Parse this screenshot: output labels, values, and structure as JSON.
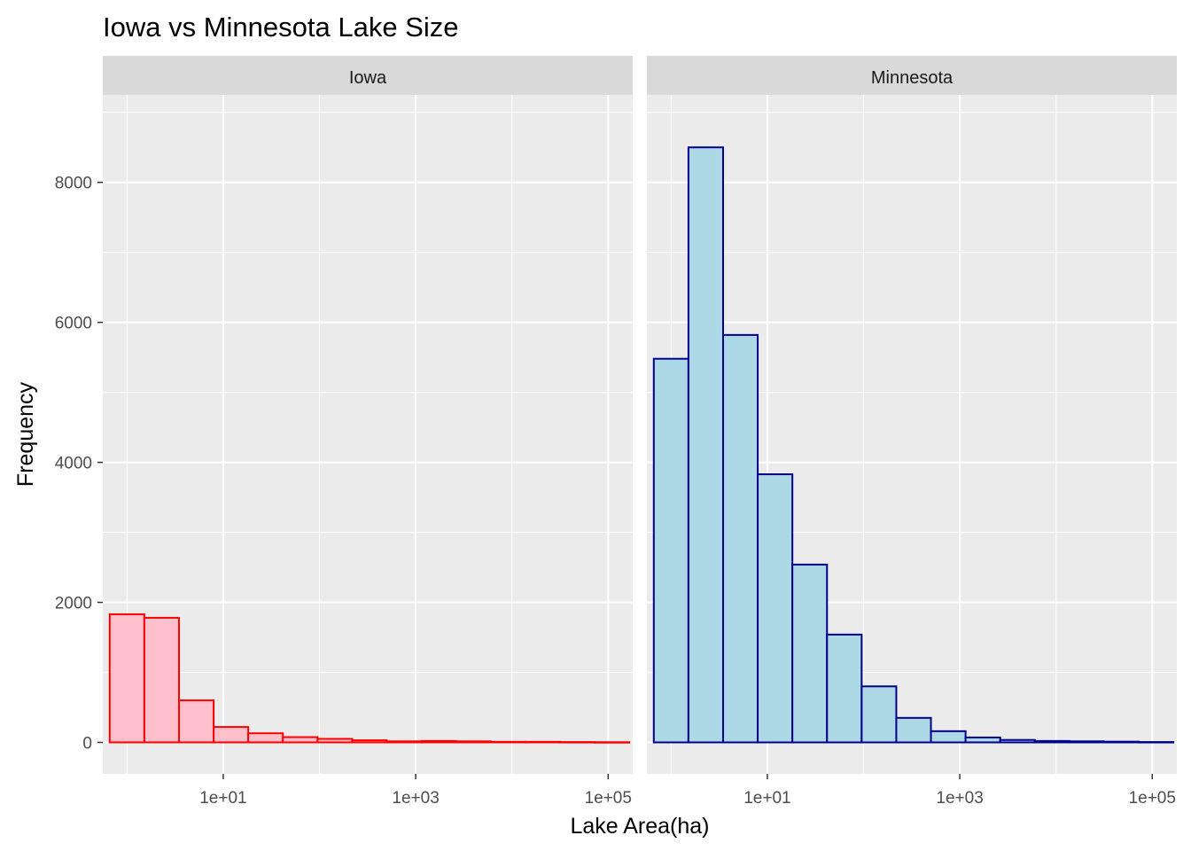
{
  "title": "Iowa vs Minnesota Lake Size",
  "chart_data": {
    "type": "bar",
    "subtype": "faceted-histogram",
    "title": "Iowa vs Minnesota Lake Size",
    "xlabel": "Lake Area(ha)",
    "ylabel": "Frequency",
    "x_scale": "log10",
    "xlim": [
      0.56,
      180000
    ],
    "ylim": [
      -450,
      9250
    ],
    "x_ticks": [
      10,
      1000,
      100000
    ],
    "x_tick_labels": [
      "1e+01",
      "1e+03",
      "1e+05"
    ],
    "y_ticks": [
      0,
      2000,
      4000,
      6000,
      8000
    ],
    "y_tick_labels": [
      "0",
      "2000",
      "4000",
      "6000",
      "8000"
    ],
    "grid": true,
    "bin_edges_log10": [
      -0.18,
      0.18,
      0.54,
      0.9,
      1.26,
      1.62,
      1.98,
      2.34,
      2.7,
      3.06,
      3.42,
      3.78,
      4.14,
      4.5,
      4.86,
      5.22
    ],
    "facets": [
      {
        "name": "Iowa",
        "fill": "#ffc0cb",
        "outline": "#ff0000",
        "counts": [
          1830,
          1780,
          600,
          220,
          130,
          75,
          50,
          30,
          15,
          20,
          15,
          8,
          8,
          5,
          3
        ]
      },
      {
        "name": "Minnesota",
        "fill": "#add8e6",
        "outline": "#00008b",
        "counts": [
          5480,
          8500,
          5820,
          3830,
          2540,
          1540,
          800,
          350,
          160,
          70,
          35,
          20,
          15,
          10,
          5
        ]
      }
    ]
  }
}
